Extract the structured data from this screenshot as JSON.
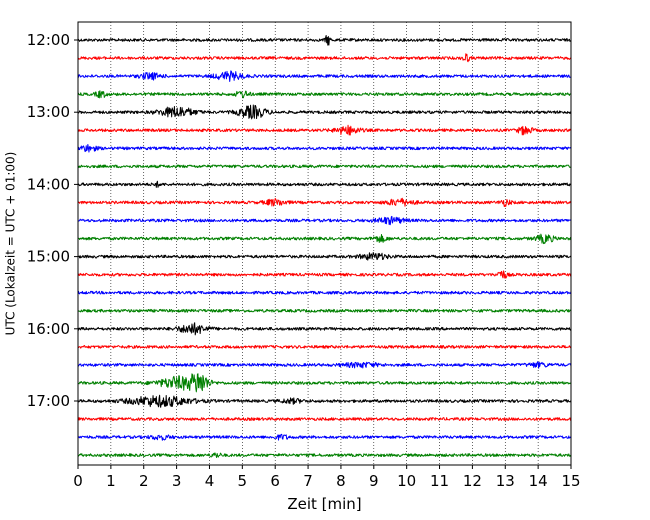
{
  "chart_data": {
    "type": "line",
    "title": "",
    "xlabel": "Zeit  [min]",
    "ylabel": "UTC (Lokalzeit = UTC + 01:00)",
    "xlim": [
      0,
      15
    ],
    "x_ticks": [
      "0",
      "1",
      "2",
      "3",
      "4",
      "5",
      "6",
      "7",
      "8",
      "9",
      "10",
      "11",
      "12",
      "13",
      "14",
      "15"
    ],
    "y_ticks": [
      "12:00",
      "13:00",
      "14:00",
      "15:00",
      "16:00",
      "17:00"
    ],
    "grid": "vertical dotted",
    "trace_colors": [
      "#000000",
      "#ff0000",
      "#0000ff",
      "#008000"
    ],
    "traces": [
      {
        "start": "12:00",
        "color": "#000000",
        "bursts": [
          {
            "t": 7.6,
            "amp": 5,
            "dur": 0.15
          }
        ]
      },
      {
        "start": "12:15",
        "color": "#ff0000",
        "bursts": [
          {
            "t": 11.8,
            "amp": 4,
            "dur": 0.2
          }
        ]
      },
      {
        "start": "12:30",
        "color": "#0000ff",
        "bursts": [
          {
            "t": 4.6,
            "amp": 4,
            "dur": 0.8
          },
          {
            "t": 2.2,
            "amp": 3,
            "dur": 0.6
          }
        ]
      },
      {
        "start": "12:45",
        "color": "#008000",
        "bursts": [
          {
            "t": 0.7,
            "amp": 3,
            "dur": 0.3
          },
          {
            "t": 5.0,
            "amp": 3,
            "dur": 0.4
          }
        ]
      },
      {
        "start": "13:00",
        "color": "#000000",
        "bursts": [
          {
            "t": 3.0,
            "amp": 5,
            "dur": 1.0
          },
          {
            "t": 5.3,
            "amp": 6,
            "dur": 0.8
          }
        ]
      },
      {
        "start": "13:15",
        "color": "#ff0000",
        "bursts": [
          {
            "t": 8.2,
            "amp": 4,
            "dur": 0.7
          },
          {
            "t": 13.6,
            "amp": 4,
            "dur": 0.4
          }
        ]
      },
      {
        "start": "13:30",
        "color": "#0000ff",
        "bursts": [
          {
            "t": 0.3,
            "amp": 3,
            "dur": 0.5
          }
        ]
      },
      {
        "start": "13:45",
        "color": "#008000",
        "bursts": []
      },
      {
        "start": "14:00",
        "color": "#000000",
        "bursts": [
          {
            "t": 2.4,
            "amp": 2,
            "dur": 0.2
          }
        ]
      },
      {
        "start": "14:15",
        "color": "#ff0000",
        "bursts": [
          {
            "t": 6.0,
            "amp": 3,
            "dur": 0.6
          },
          {
            "t": 9.8,
            "amp": 3,
            "dur": 0.8
          },
          {
            "t": 13.0,
            "amp": 3,
            "dur": 0.3
          }
        ]
      },
      {
        "start": "14:30",
        "color": "#0000ff",
        "bursts": [
          {
            "t": 9.5,
            "amp": 3,
            "dur": 0.8
          }
        ]
      },
      {
        "start": "14:45",
        "color": "#008000",
        "bursts": [
          {
            "t": 9.2,
            "amp": 3,
            "dur": 0.4
          },
          {
            "t": 14.2,
            "amp": 4,
            "dur": 0.5
          }
        ]
      },
      {
        "start": "15:00",
        "color": "#000000",
        "bursts": [
          {
            "t": 9.0,
            "amp": 3,
            "dur": 0.8
          }
        ]
      },
      {
        "start": "15:15",
        "color": "#ff0000",
        "bursts": [
          {
            "t": 12.9,
            "amp": 4,
            "dur": 0.3
          }
        ]
      },
      {
        "start": "15:30",
        "color": "#0000ff",
        "bursts": []
      },
      {
        "start": "15:45",
        "color": "#008000",
        "bursts": []
      },
      {
        "start": "16:00",
        "color": "#000000",
        "bursts": [
          {
            "t": 3.5,
            "amp": 5,
            "dur": 0.8
          }
        ]
      },
      {
        "start": "16:15",
        "color": "#ff0000",
        "bursts": []
      },
      {
        "start": "16:30",
        "color": "#0000ff",
        "bursts": [
          {
            "t": 8.6,
            "amp": 2,
            "dur": 1.0
          },
          {
            "t": 14.0,
            "amp": 2,
            "dur": 0.6
          }
        ]
      },
      {
        "start": "16:45",
        "color": "#008000",
        "bursts": [
          {
            "t": 3.1,
            "amp": 6,
            "dur": 1.2
          },
          {
            "t": 3.7,
            "amp": 9,
            "dur": 0.5
          }
        ]
      },
      {
        "start": "17:00",
        "color": "#000000",
        "bursts": [
          {
            "t": 2.5,
            "amp": 5,
            "dur": 1.8
          },
          {
            "t": 6.5,
            "amp": 2,
            "dur": 0.6
          }
        ]
      },
      {
        "start": "17:15",
        "color": "#ff0000",
        "bursts": []
      },
      {
        "start": "17:30",
        "color": "#0000ff",
        "bursts": [
          {
            "t": 2.5,
            "amp": 2,
            "dur": 0.6
          },
          {
            "t": 6.2,
            "amp": 2,
            "dur": 0.4
          }
        ]
      },
      {
        "start": "17:45",
        "color": "#008000",
        "bursts": [
          {
            "t": 4.2,
            "amp": 2,
            "dur": 0.3
          }
        ]
      }
    ]
  }
}
